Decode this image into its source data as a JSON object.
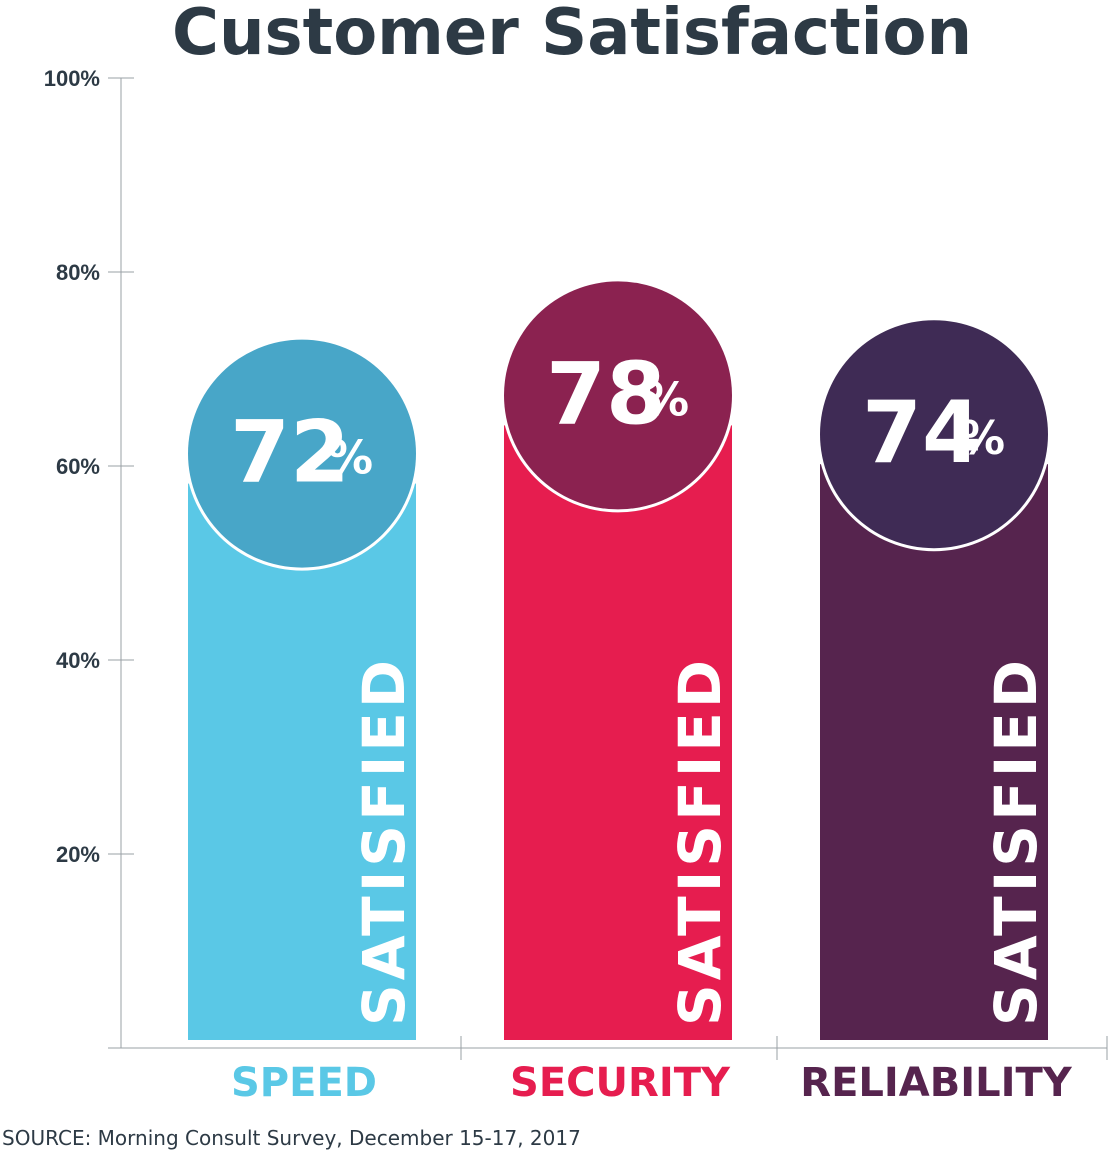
{
  "chart_data": {
    "type": "bar",
    "title": "Customer Satisfaction",
    "categories": [
      "SPEED",
      "SECURITY",
      "RELIABILITY"
    ],
    "values": [
      72,
      78,
      74
    ],
    "value_labels": [
      "72",
      "78",
      "74"
    ],
    "value_suffix": "%",
    "bar_text": "SATISFIED",
    "ylim": [
      0,
      100
    ],
    "y_ticks": [
      20,
      40,
      60,
      80,
      100
    ],
    "y_tick_labels": [
      "20%",
      "40%",
      "60%",
      "80%",
      "100%"
    ],
    "grid": false,
    "legend": "none",
    "source": "SOURCE:  Morning Consult Survey, December 15-17, 2017",
    "colors": {
      "bars": [
        "#5ac8e6",
        "#e61d4f",
        "#56244e"
      ],
      "circles": [
        "#48a6c8",
        "#8b2250",
        "#3f2b55"
      ],
      "labels": [
        "#5ac8e6",
        "#e61d4f",
        "#56244e"
      ],
      "axis": "#2d3a45"
    }
  }
}
